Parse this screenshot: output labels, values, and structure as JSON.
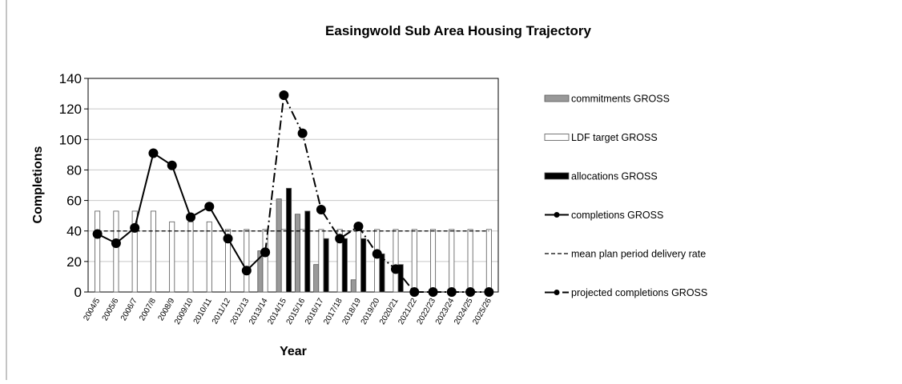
{
  "chart_data": {
    "type": "bar_line",
    "title": "Easingwold Sub Area Housing Trajectory",
    "x_label": "Year",
    "y_label": "Completions",
    "categories": [
      "2004/5",
      "2005/6",
      "2006/7",
      "2007/8",
      "2008/9",
      "2009/10",
      "2010/11",
      "2011/12",
      "2012/13",
      "2013/14",
      "2014/15",
      "2015/16",
      "2016/17",
      "2017/18",
      "2018/19",
      "2019/20",
      "2020/21",
      "2021/22",
      "2022/23",
      "2023/24",
      "2024/25",
      "2025/26"
    ],
    "ylim": [
      0,
      140
    ],
    "yticks": [
      0,
      20,
      40,
      60,
      80,
      100,
      120,
      140
    ],
    "grid": true,
    "series": [
      {
        "name": "commitments GROSS",
        "kind": "bar",
        "color": "#999999",
        "values": [
          0,
          0,
          0,
          0,
          0,
          0,
          0,
          0,
          0,
          27,
          61,
          51,
          18,
          0,
          8,
          0,
          0,
          0,
          0,
          0,
          0,
          0
        ]
      },
      {
        "name": "LDF target GROSS",
        "kind": "bar",
        "color": "#ffffff",
        "values": [
          53,
          53,
          53,
          53,
          46,
          46,
          46,
          41,
          41,
          41,
          41,
          41,
          41,
          41,
          41,
          41,
          41,
          41,
          41,
          41,
          41,
          41
        ]
      },
      {
        "name": "allocations GROSS",
        "kind": "bar",
        "color": "#000000",
        "values": [
          0,
          0,
          0,
          0,
          0,
          0,
          0,
          0,
          0,
          0,
          68,
          53,
          35,
          35,
          35,
          25,
          18,
          0,
          0,
          0,
          0,
          0
        ]
      },
      {
        "name": "completions GROSS",
        "kind": "line",
        "style": "solid",
        "marker": true,
        "color": "#000000",
        "values": [
          38,
          32,
          42,
          91,
          83,
          49,
          56,
          35,
          14,
          26,
          null,
          null,
          null,
          null,
          null,
          null,
          null,
          null,
          null,
          null,
          null,
          null
        ]
      },
      {
        "name": "mean plan period delivery rate",
        "kind": "line",
        "style": "dashed",
        "marker": false,
        "color": "#000000",
        "values": [
          40,
          40,
          40,
          40,
          40,
          40,
          40,
          40,
          40,
          40,
          40,
          40,
          40,
          40,
          40,
          40,
          40,
          40,
          40,
          40,
          40,
          40
        ]
      },
      {
        "name": "projected completions GROSS",
        "kind": "line",
        "style": "dashdot",
        "marker": true,
        "color": "#000000",
        "values": [
          null,
          null,
          null,
          null,
          null,
          null,
          null,
          null,
          null,
          26,
          129,
          104,
          54,
          35,
          43,
          25,
          15,
          0,
          0,
          0,
          0,
          0
        ]
      }
    ]
  }
}
